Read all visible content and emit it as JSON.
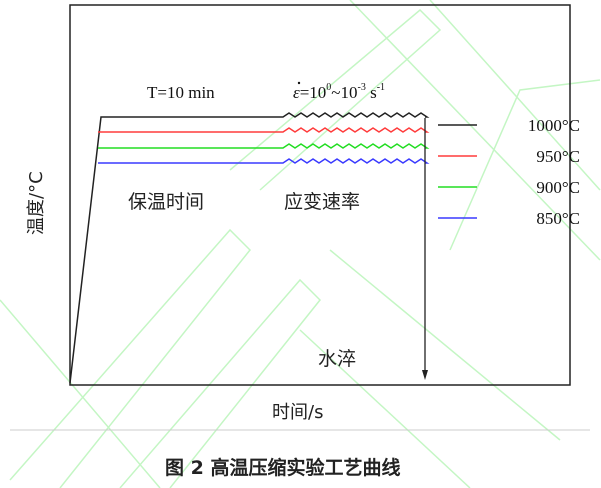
{
  "diagram": {
    "hold_label": "T=10 min",
    "strain_rate_label": {
      "symbol": "ε",
      "base1": "=10",
      "exp1": "0",
      "sep": "~10",
      "exp2": "-3",
      "unit": " s",
      "unit_exp": "-1"
    },
    "hold_time_text": "保温时间",
    "strain_rate_text": "应变速率",
    "quench_text": "水淬",
    "y_axis_label": "温度/°C",
    "x_axis_label": "时间/s",
    "caption": "图 2  高温压缩实验工艺曲线",
    "series": [
      {
        "label": "1000°C",
        "color": "#222222"
      },
      {
        "label": "950°C",
        "color": "#ff3b3b"
      },
      {
        "label": "900°C",
        "color": "#22dd22"
      },
      {
        "label": "850°C",
        "color": "#3a3aff"
      }
    ],
    "watermark_color": "#b8f5b8"
  }
}
